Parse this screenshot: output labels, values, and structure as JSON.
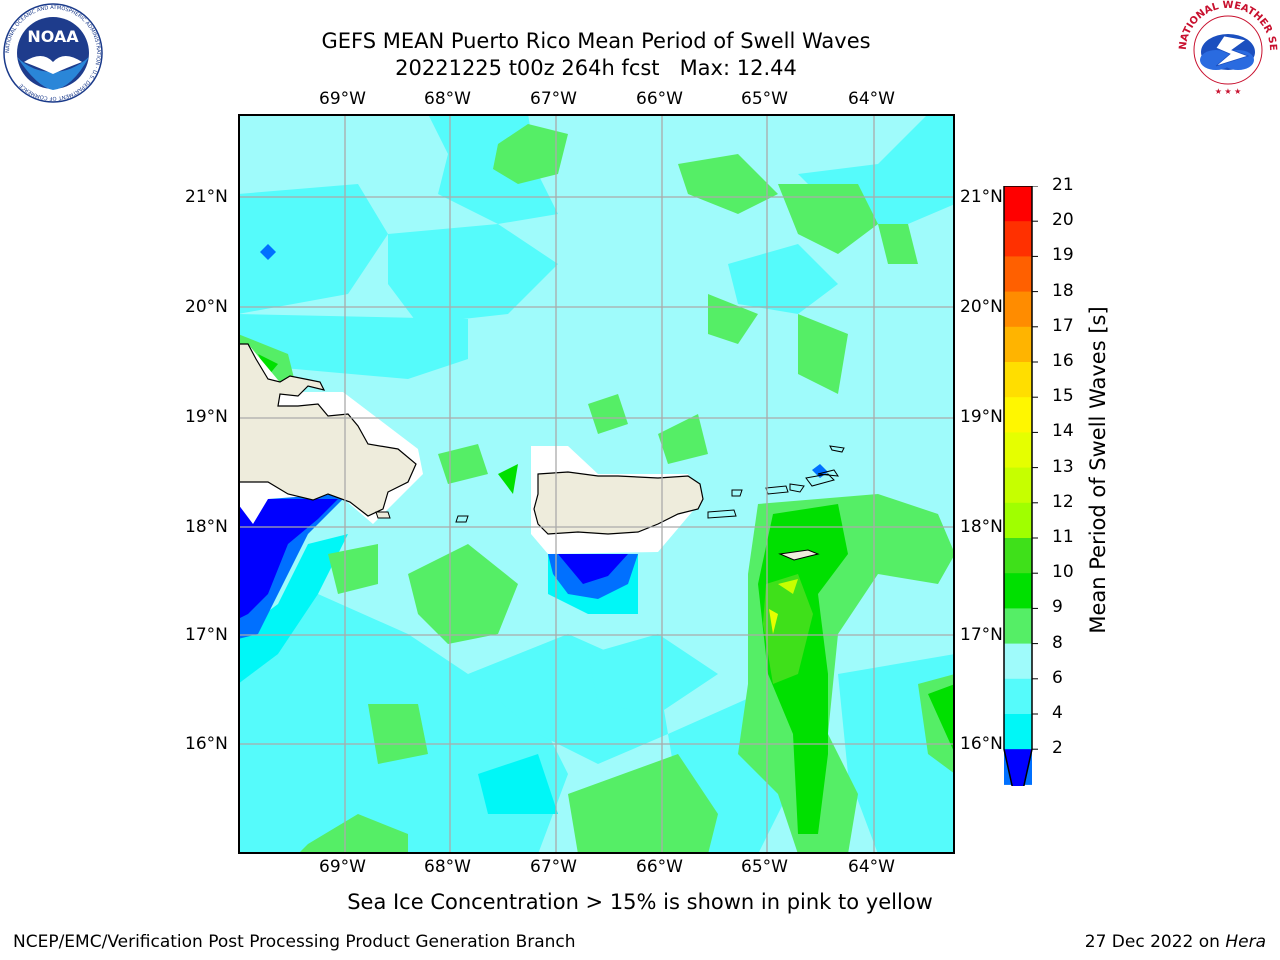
{
  "header": {
    "title_line1": "GEFS MEAN Puerto Rico Mean Period of Swell Waves",
    "title_line2": "20221225 t00z 264h fcst   Max: 12.44"
  },
  "logos": {
    "left": "NOAA",
    "left_ring": "NATIONAL OCEANIC AND ATMOSPHERIC ADMINISTRATION · U.S. DEPARTMENT OF COMMERCE",
    "right_ring": "NATIONAL WEATHER SERVICE"
  },
  "map": {
    "lon_labels": [
      "69°W",
      "68°W",
      "67°W",
      "66°W",
      "65°W",
      "64°W"
    ],
    "lat_labels": [
      "21°N",
      "20°N",
      "19°N",
      "18°N",
      "17°N",
      "16°N"
    ],
    "land_color": "#eeecdc",
    "ocean_base_color": "#9ffbfb"
  },
  "colorbar": {
    "label": "Mean Period of Swell Waves [s]",
    "ticks": [
      "21",
      "20",
      "19",
      "18",
      "17",
      "16",
      "15",
      "14",
      "13",
      "12",
      "11",
      "10",
      "9",
      "8",
      "6",
      "4",
      "2"
    ],
    "colors": [
      "#ff0000",
      "#ff3000",
      "#ff6000",
      "#ff8c00",
      "#ffb400",
      "#ffde00",
      "#fff700",
      "#e5ff00",
      "#c6ff00",
      "#a0ff00",
      "#3fe01a",
      "#00e000",
      "#55ee66",
      "#9ffbfb",
      "#55fbfb",
      "#00f7f7",
      "#0070ff"
    ],
    "extend_color": "#0000ff"
  },
  "caption": "Sea Ice Concentration > 15% is shown in pink to yellow",
  "footer": {
    "left": "NCEP/EMC/Verification Post Processing Product Generation Branch",
    "right_prefix": "27 Dec 2022 on ",
    "right_host": "Hera"
  }
}
